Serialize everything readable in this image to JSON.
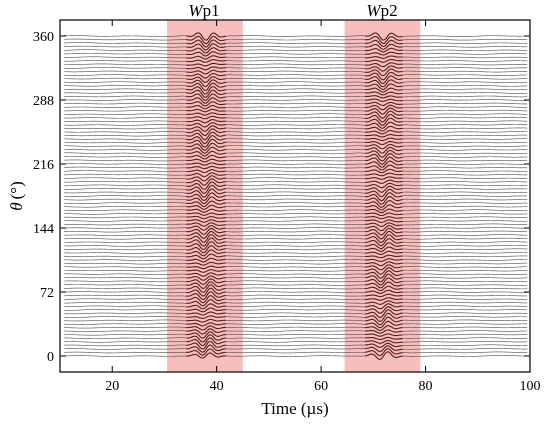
{
  "chart_data": {
    "type": "line",
    "title": "",
    "xlabel": "Time (µs)",
    "ylabel_symbol": "θ",
    "ylabel_unit": "(°)",
    "xlim": [
      10,
      100
    ],
    "ylim": [
      -18,
      378
    ],
    "xticks": [
      20,
      40,
      60,
      80,
      100
    ],
    "yticks": [
      0,
      72,
      144,
      216,
      288,
      360
    ],
    "grid": false,
    "trace_start_angle": 0,
    "trace_end_angle": 360,
    "trace_angle_step": 4,
    "trace_amplitude_scale": 40,
    "trace_color": "#4a4a4a",
    "packet_color": "#5a1e1e",
    "highlight_color": "#f6b3b3",
    "highlight_regions": [
      {
        "label_italic": "W",
        "label_rest": "p1",
        "x_start": 30.5,
        "x_end": 45,
        "packet_center": 38,
        "packet_width": 2.4,
        "packet_period": 3.2
      },
      {
        "label_italic": "W",
        "label_rest": "p2",
        "x_start": 64.5,
        "x_end": 79,
        "packet_center": 72,
        "packet_width": 2.3,
        "packet_period": 3.4
      }
    ]
  }
}
